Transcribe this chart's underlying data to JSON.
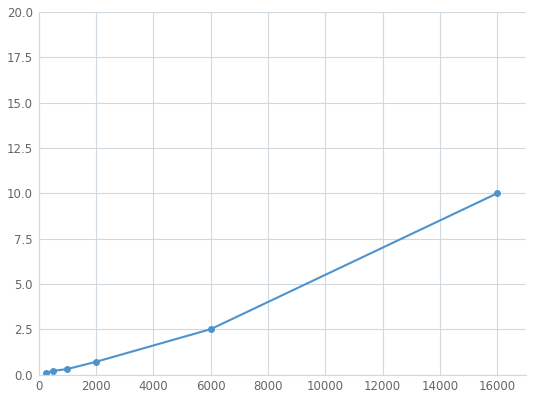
{
  "x": [
    250,
    500,
    1000,
    2000,
    6000,
    16000
  ],
  "y": [
    0.1,
    0.2,
    0.3,
    0.7,
    2.5,
    10.0
  ],
  "line_color": "#4e93cb",
  "marker_color": "#4e93cb",
  "marker_style": "o",
  "marker_size": 4,
  "line_width": 1.5,
  "xlim": [
    0,
    17000
  ],
  "ylim": [
    0,
    20.0
  ],
  "xticks": [
    0,
    2000,
    4000,
    6000,
    8000,
    10000,
    12000,
    14000,
    16000
  ],
  "yticks": [
    0.0,
    2.5,
    5.0,
    7.5,
    10.0,
    12.5,
    15.0,
    17.5,
    20.0
  ],
  "grid_color": "#d0d8e0",
  "background_color": "#ffffff",
  "fig_background": "#ffffff"
}
